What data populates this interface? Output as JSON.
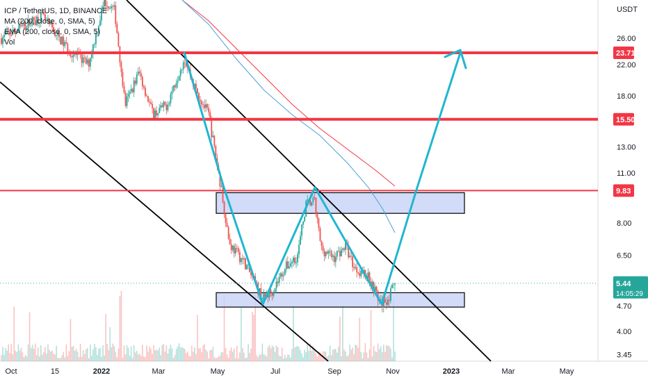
{
  "legend": {
    "symbol": "ICP / TetherUS, 1D, BINANCE",
    "ma": "MA (200, close, 0, SMA, 5)",
    "ema": "EMA (200, close, 0, SMA, 5)",
    "vol": "Vol"
  },
  "chart_data": {
    "type": "candlestick",
    "title": "ICP / TetherUS, 1D, BINANCE",
    "yscale": "log",
    "y_unit": "USDT",
    "ylim": [
      3.25,
      33
    ],
    "x_ticks": [
      "Oct",
      "15",
      "2022",
      "Mar",
      "May",
      "Jul",
      "Sep",
      "Nov",
      "2023",
      "Mar",
      "May"
    ],
    "y_ticks": [
      "26.00",
      "22.00",
      "18.00",
      "13.00",
      "11.00",
      "8.00",
      "6.50",
      "4.70",
      "4.00",
      "3.45"
    ],
    "horizontal_levels": [
      {
        "value": 23.71,
        "label": "23.71",
        "color": "#f23645"
      },
      {
        "value": 15.5,
        "label": "15.50",
        "color": "#f23645"
      },
      {
        "value": 9.83,
        "label": "9.83",
        "color": "#f23645"
      }
    ],
    "last_price": {
      "value": 5.44,
      "label": "5.44",
      "countdown": "14:05:29",
      "color": "#26a69a"
    },
    "zones": [
      {
        "top": 9.7,
        "bottom": 8.5
      },
      {
        "top": 5.12,
        "bottom": 4.67
      }
    ],
    "colors": {
      "up": "#26a69a",
      "down": "#ef5350",
      "ma": "#f23645",
      "ema": "#4a9fd8",
      "pattern": "#1fb6d0",
      "channel": "#000000"
    }
  }
}
